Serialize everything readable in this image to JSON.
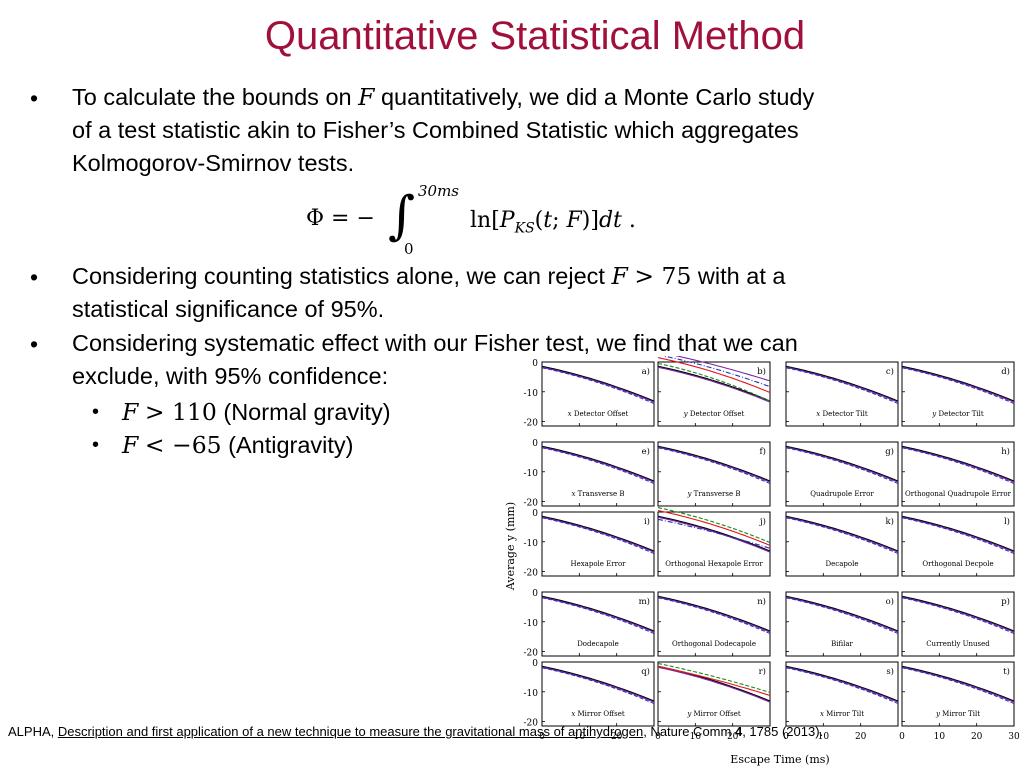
{
  "slide": {
    "title": "Quantitative Statistical Method",
    "b1_text": "To calculate the bounds on F quantitatively, we did a Monte Carlo study of a test statistic akin to Fisher’s Combined Statistic which aggregates Kolmogorov-Smirnov tests.",
    "equation": "Φ = −∫_0^{30ms} ln[P_KS(t;F)] dt .",
    "b2_text": "Considering counting statistics alone, we can reject F > 75 with at a statistical significance of 95%.",
    "b3_text": "Considering systematic effect with our Fisher test, we find that we can exclude, with 95% confidence:",
    "sub1": "F > 110 (Normal gravity)",
    "sub2": "F < −65 (Antigravity)",
    "ref_prefix": "ALPHA, ",
    "ref_link": "Description and first application of a new technique to measure the gravitational mass of antihydrogen",
    "ref_mid": ", Nature Comm ",
    "ref_vol": "4",
    "ref_end": ", 1785 (2013)."
  },
  "figure": {
    "y_axis_label": "Average y (mm)",
    "x_axis_label": "Escape Time (ms)",
    "y_ticks": [
      "0",
      "-10",
      "-20"
    ],
    "x_ticks": [
      "0",
      "10",
      "20",
      "0",
      "10",
      "20",
      "0",
      "10",
      "20",
      "0",
      "10",
      "20",
      "30"
    ],
    "panels": [
      {
        "id": "a)",
        "label": "x Detector Offset",
        "italic_prefix": true
      },
      {
        "id": "b)",
        "label": "y Detector Offset",
        "italic_prefix": true
      },
      {
        "id": "c)",
        "label": "x Detector Tilt",
        "italic_prefix": true
      },
      {
        "id": "d)",
        "label": "y Detector Tilt",
        "italic_prefix": true
      },
      {
        "id": "e)",
        "label": "x Transverse B",
        "italic_prefix": true
      },
      {
        "id": "f)",
        "label": "y Transverse B",
        "italic_prefix": true
      },
      {
        "id": "g)",
        "label": "Quadrupole Error",
        "italic_prefix": false
      },
      {
        "id": "h)",
        "label": "Orthogonal Quadrupole Error",
        "italic_prefix": false
      },
      {
        "id": "i)",
        "label": "Hexapole Error",
        "italic_prefix": false
      },
      {
        "id": "j)",
        "label": "Orthogonal Hexapole Error",
        "italic_prefix": false
      },
      {
        "id": "k)",
        "label": "Decapole",
        "italic_prefix": false
      },
      {
        "id": "l)",
        "label": "Orthogonal Decpole",
        "italic_prefix": false
      },
      {
        "id": "m)",
        "label": "Dodecapole",
        "italic_prefix": false
      },
      {
        "id": "n)",
        "label": "Orthogonal Dodecapole",
        "italic_prefix": false
      },
      {
        "id": "o)",
        "label": "Bifilar",
        "italic_prefix": false
      },
      {
        "id": "p)",
        "label": "Currently Unused",
        "italic_prefix": false
      },
      {
        "id": "q)",
        "label": "x Mirror Offset",
        "italic_prefix": true
      },
      {
        "id": "r)",
        "label": "y Mirror Offset",
        "italic_prefix": true
      },
      {
        "id": "s)",
        "label": "x Mirror Tilt",
        "italic_prefix": true
      },
      {
        "id": "t)",
        "label": "y Mirror Tilt",
        "italic_prefix": true
      }
    ],
    "colors": {
      "black": "#000000",
      "purple": "#7a2aa0",
      "red": "#e0181a",
      "green": "#1a8a1a",
      "blue": "#2030c0"
    }
  }
}
